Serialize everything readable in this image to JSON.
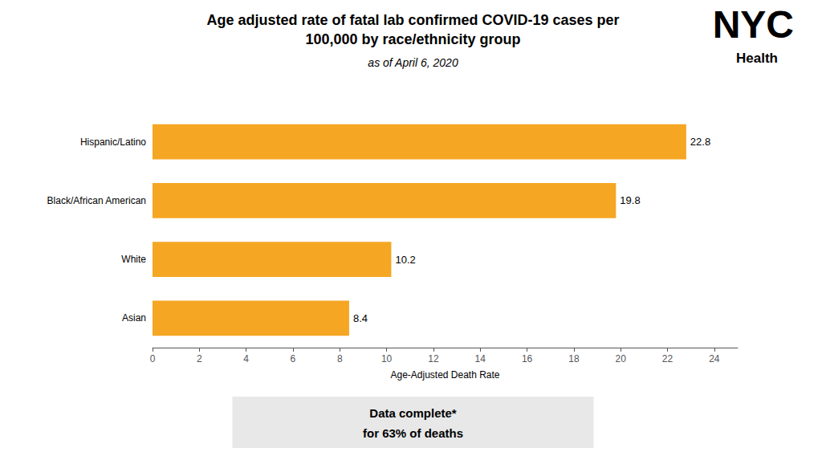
{
  "chart_data": {
    "type": "bar",
    "orientation": "horizontal",
    "title": "Age adjusted rate of fatal lab confirmed COVID-19 cases per\n100,000 by race/ethnicity group",
    "subtitle": "as of April 6, 2020",
    "xlabel": "Age-Adjusted Death Rate",
    "categories": [
      "Hispanic/Latino",
      "Black/African American",
      "White",
      "Asian"
    ],
    "values": [
      22.8,
      19.8,
      10.2,
      8.4
    ],
    "color": "#F5A623",
    "xlim": [
      0,
      25
    ],
    "xticks": [
      0,
      2,
      4,
      6,
      8,
      10,
      12,
      14,
      16,
      18,
      20,
      22,
      24
    ],
    "grid": false,
    "data_labels": true,
    "annotations": [
      "Data complete*",
      "for 63% of deaths",
      "NYC",
      "Health"
    ]
  }
}
